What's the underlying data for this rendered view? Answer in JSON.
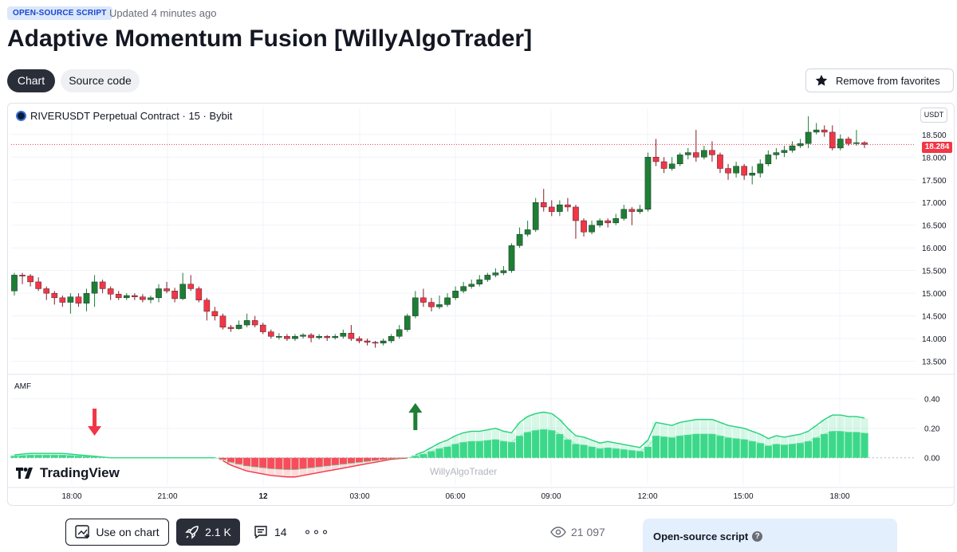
{
  "header": {
    "badge": "OPEN-SOURCE SCRIPT",
    "updated": "Updated 4 minutes ago",
    "title": "Adaptive Momentum Fusion [WillyAlgoTrader]"
  },
  "tabs": [
    {
      "label": "Chart",
      "active": true
    },
    {
      "label": "Source code",
      "active": false
    }
  ],
  "favorite_button": {
    "label": "Remove from favorites",
    "icon": "star-icon"
  },
  "chart": {
    "symbol": "RIVERUSDT Perpetual Contract · 15 · Bybit",
    "currency_button": "USDT",
    "last_price": "18.284",
    "indicator_label": "AMF",
    "logo_text": "TradingView",
    "watermark": "WillyAlgoTrader",
    "colors": {
      "up": "#1e7e34",
      "down": "#f23645",
      "osc_up": "#22d37a",
      "osc_down": "#f23645"
    }
  },
  "chart_data": {
    "type": "candlestick",
    "price_axis_labels": [
      "18.500",
      "18.000",
      "17.500",
      "17.000",
      "16.500",
      "16.000",
      "15.500",
      "15.000",
      "14.500",
      "14.000",
      "13.500"
    ],
    "price_axis_values": [
      18.5,
      18.0,
      17.5,
      17.0,
      16.5,
      16.0,
      15.5,
      15.0,
      14.5,
      14.0,
      13.5
    ],
    "time_axis_labels": [
      "18:00",
      "21:00",
      "12",
      "03:00",
      "06:00",
      "09:00",
      "12:00",
      "15:00",
      "18:00"
    ],
    "osc_axis_labels": [
      "0.40",
      "0.20",
      "0.00"
    ],
    "osc_axis_values": [
      0.4,
      0.2,
      0.0
    ],
    "ylim": [
      13.3,
      18.9
    ],
    "osc_ylim": [
      -0.18,
      0.55
    ],
    "signals": [
      {
        "type": "bearish",
        "index": 10
      },
      {
        "type": "bullish",
        "index": 50
      }
    ],
    "candles": [
      [
        15.05,
        15.4,
        15.45,
        14.95
      ],
      [
        15.4,
        15.38,
        15.45,
        15.2
      ],
      [
        15.38,
        15.25,
        15.42,
        15.15
      ],
      [
        15.25,
        15.1,
        15.35,
        15.05
      ],
      [
        15.1,
        15.0,
        15.15,
        14.85
      ],
      [
        15.0,
        14.9,
        15.05,
        14.75
      ],
      [
        14.9,
        14.8,
        14.95,
        14.7
      ],
      [
        14.8,
        14.92,
        15.0,
        14.55
      ],
      [
        14.92,
        14.78,
        15.0,
        14.7
      ],
      [
        14.78,
        15.0,
        15.1,
        14.6
      ],
      [
        15.0,
        15.25,
        15.4,
        14.7
      ],
      [
        15.25,
        15.1,
        15.3,
        15.0
      ],
      [
        15.1,
        14.98,
        15.15,
        14.85
      ],
      [
        14.98,
        14.9,
        15.05,
        14.85
      ],
      [
        14.9,
        14.95,
        15.0,
        14.85
      ],
      [
        14.95,
        14.92,
        15.0,
        14.85
      ],
      [
        14.92,
        14.86,
        14.98,
        14.8
      ],
      [
        14.86,
        14.9,
        14.95,
        14.78
      ],
      [
        14.9,
        15.1,
        15.2,
        14.8
      ],
      [
        15.1,
        15.05,
        15.25,
        15.0
      ],
      [
        15.05,
        14.88,
        15.12,
        14.8
      ],
      [
        14.88,
        15.2,
        15.45,
        14.85
      ],
      [
        15.2,
        15.1,
        15.4,
        15.05
      ],
      [
        15.1,
        14.85,
        15.15,
        14.8
      ],
      [
        14.85,
        14.6,
        14.9,
        14.4
      ],
      [
        14.6,
        14.5,
        14.7,
        14.4
      ],
      [
        14.5,
        14.25,
        14.55,
        14.2
      ],
      [
        14.25,
        14.22,
        14.3,
        14.15
      ],
      [
        14.22,
        14.3,
        14.4,
        14.2
      ],
      [
        14.3,
        14.4,
        14.55,
        14.25
      ],
      [
        14.4,
        14.3,
        14.5,
        14.25
      ],
      [
        14.3,
        14.15,
        14.35,
        14.1
      ],
      [
        14.15,
        14.05,
        14.2,
        14.0
      ],
      [
        14.05,
        14.05,
        14.12,
        13.98
      ],
      [
        14.05,
        14.0,
        14.1,
        13.95
      ],
      [
        14.0,
        14.05,
        14.1,
        13.95
      ],
      [
        14.05,
        14.08,
        14.12,
        14.0
      ],
      [
        14.08,
        14.02,
        14.12,
        13.92
      ],
      [
        14.02,
        14.05,
        14.1,
        13.98
      ],
      [
        14.05,
        14.02,
        14.08,
        13.95
      ],
      [
        14.02,
        14.05,
        14.1,
        13.98
      ],
      [
        14.05,
        14.12,
        14.2,
        14.0
      ],
      [
        14.12,
        14.0,
        14.3,
        13.95
      ],
      [
        14.0,
        13.95,
        14.05,
        13.9
      ],
      [
        13.95,
        13.92,
        14.0,
        13.85
      ],
      [
        13.92,
        13.9,
        13.95,
        13.8
      ],
      [
        13.9,
        13.95,
        14.0,
        13.85
      ],
      [
        13.95,
        14.05,
        14.1,
        13.9
      ],
      [
        14.05,
        14.2,
        14.3,
        14.0
      ],
      [
        14.2,
        14.5,
        14.55,
        14.15
      ],
      [
        14.5,
        14.9,
        15.05,
        14.45
      ],
      [
        14.9,
        14.8,
        15.1,
        14.7
      ],
      [
        14.8,
        14.7,
        14.9,
        14.6
      ],
      [
        14.7,
        14.75,
        14.95,
        14.65
      ],
      [
        14.75,
        14.9,
        15.0,
        14.7
      ],
      [
        14.9,
        15.05,
        15.15,
        14.85
      ],
      [
        15.05,
        15.15,
        15.25,
        15.0
      ],
      [
        15.15,
        15.2,
        15.3,
        15.1
      ],
      [
        15.2,
        15.3,
        15.4,
        15.15
      ],
      [
        15.3,
        15.4,
        15.45,
        15.25
      ],
      [
        15.4,
        15.45,
        15.55,
        15.35
      ],
      [
        15.45,
        15.5,
        15.6,
        15.4
      ],
      [
        15.5,
        16.05,
        16.1,
        15.45
      ],
      [
        16.05,
        16.3,
        16.45,
        16.0
      ],
      [
        16.3,
        16.4,
        16.6,
        16.25
      ],
      [
        16.4,
        17.0,
        17.1,
        16.35
      ],
      [
        17.0,
        16.9,
        17.3,
        16.8
      ],
      [
        16.9,
        16.8,
        17.05,
        16.7
      ],
      [
        16.8,
        16.95,
        17.05,
        16.7
      ],
      [
        16.95,
        16.9,
        17.1,
        16.8
      ],
      [
        16.9,
        16.6,
        16.95,
        16.2
      ],
      [
        16.6,
        16.35,
        16.65,
        16.25
      ],
      [
        16.35,
        16.5,
        16.6,
        16.3
      ],
      [
        16.5,
        16.6,
        16.65,
        16.45
      ],
      [
        16.6,
        16.55,
        16.65,
        16.45
      ],
      [
        16.55,
        16.65,
        16.75,
        16.5
      ],
      [
        16.65,
        16.85,
        16.95,
        16.6
      ],
      [
        16.85,
        16.8,
        16.9,
        16.5
      ],
      [
        16.8,
        16.85,
        16.95,
        16.75
      ],
      [
        16.85,
        18.0,
        18.1,
        16.8
      ],
      [
        18.0,
        17.9,
        18.4,
        17.8
      ],
      [
        17.9,
        17.75,
        18.0,
        17.65
      ],
      [
        17.75,
        17.85,
        18.0,
        17.7
      ],
      [
        17.85,
        18.05,
        18.1,
        17.8
      ],
      [
        18.05,
        18.1,
        18.2,
        17.95
      ],
      [
        18.1,
        18.0,
        18.6,
        17.9
      ],
      [
        18.0,
        18.15,
        18.25,
        17.95
      ],
      [
        18.15,
        18.05,
        18.35,
        17.9
      ],
      [
        18.05,
        17.75,
        18.1,
        17.65
      ],
      [
        17.75,
        17.65,
        17.85,
        17.5
      ],
      [
        17.65,
        17.8,
        17.9,
        17.55
      ],
      [
        17.8,
        17.6,
        17.85,
        17.5
      ],
      [
        17.6,
        17.65,
        17.8,
        17.4
      ],
      [
        17.65,
        17.85,
        17.95,
        17.55
      ],
      [
        17.85,
        18.05,
        18.15,
        17.8
      ],
      [
        18.05,
        18.1,
        18.2,
        17.95
      ],
      [
        18.1,
        18.15,
        18.25,
        18.0
      ],
      [
        18.15,
        18.25,
        18.35,
        18.1
      ],
      [
        18.25,
        18.3,
        18.4,
        18.2
      ],
      [
        18.3,
        18.55,
        18.9,
        18.2
      ],
      [
        18.55,
        18.6,
        18.75,
        18.5
      ],
      [
        18.6,
        18.55,
        18.7,
        18.45
      ],
      [
        18.55,
        18.2,
        18.7,
        18.15
      ],
      [
        18.2,
        18.4,
        18.5,
        18.15
      ],
      [
        18.4,
        18.3,
        18.45,
        18.25
      ],
      [
        18.3,
        18.32,
        18.6,
        18.25
      ],
      [
        18.32,
        18.28,
        18.35,
        18.2
      ]
    ],
    "oscillator": [
      0.02,
      0.025,
      0.03,
      0.03,
      0.03,
      0.03,
      0.03,
      0.025,
      0.02,
      0.015,
      0.01,
      0.005,
      0.0,
      0.0,
      0.0,
      0.0,
      0.0,
      0.0,
      0.0,
      0.0,
      0.0,
      0.0,
      0.0,
      0.0,
      0.0,
      0.0,
      -0.02,
      -0.05,
      -0.07,
      -0.09,
      -0.1,
      -0.11,
      -0.12,
      -0.125,
      -0.13,
      -0.13,
      -0.12,
      -0.11,
      -0.1,
      -0.09,
      -0.08,
      -0.07,
      -0.06,
      -0.05,
      -0.04,
      -0.03,
      -0.02,
      -0.01,
      -0.005,
      -0.002,
      0.02,
      0.04,
      0.07,
      0.1,
      0.12,
      0.15,
      0.17,
      0.18,
      0.18,
      0.19,
      0.2,
      0.18,
      0.17,
      0.24,
      0.28,
      0.3,
      0.31,
      0.3,
      0.26,
      0.2,
      0.15,
      0.14,
      0.12,
      0.1,
      0.11,
      0.1,
      0.09,
      0.08,
      0.07,
      0.12,
      0.24,
      0.23,
      0.22,
      0.24,
      0.25,
      0.26,
      0.26,
      0.26,
      0.24,
      0.22,
      0.21,
      0.2,
      0.18,
      0.16,
      0.13,
      0.15,
      0.14,
      0.15,
      0.16,
      0.18,
      0.22,
      0.26,
      0.29,
      0.29,
      0.28,
      0.28,
      0.27
    ]
  },
  "bottom_bar": {
    "use_on_chart": "Use on chart",
    "boosts": "2.1 K",
    "comments": "14",
    "more": "∘∘∘",
    "views": "21 097",
    "panel_title": "Open-source script"
  }
}
